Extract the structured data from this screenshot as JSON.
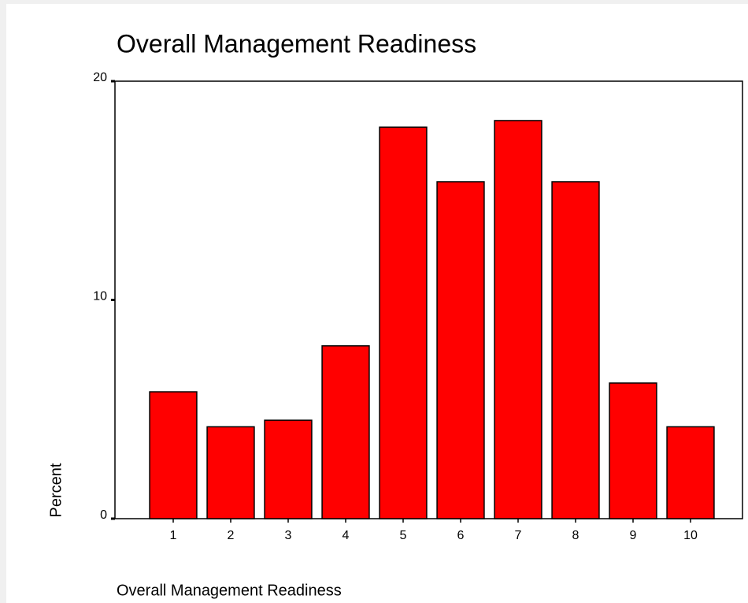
{
  "chart_data": {
    "type": "bar",
    "title": "Overall Management Readiness",
    "x_label": "Overall Management Readiness",
    "y_label": "Percent",
    "categories": [
      "1",
      "2",
      "3",
      "4",
      "5",
      "6",
      "7",
      "8",
      "9",
      "10"
    ],
    "values": [
      5.8,
      4.2,
      4.5,
      7.9,
      17.9,
      15.4,
      18.2,
      15.4,
      6.2,
      4.2
    ],
    "color": "#ff0000",
    "ylim": [
      0,
      20
    ],
    "yticks": [
      0,
      10,
      20
    ],
    "grid": false
  }
}
